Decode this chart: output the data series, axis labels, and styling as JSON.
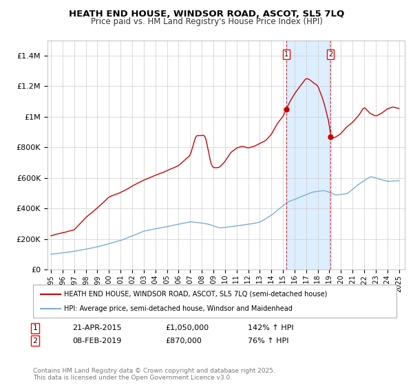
{
  "title_line1": "HEATH END HOUSE, WINDSOR ROAD, ASCOT, SL5 7LQ",
  "title_line2": "Price paid vs. HM Land Registry's House Price Index (HPI)",
  "ylim": [
    0,
    1500000
  ],
  "yticks": [
    0,
    200000,
    400000,
    600000,
    800000,
    1000000,
    1200000,
    1400000
  ],
  "ytick_labels": [
    "£0",
    "£200K",
    "£400K",
    "£600K",
    "£800K",
    "£1M",
    "£1.2M",
    "£1.4M"
  ],
  "sale1_date": "21-APR-2015",
  "sale1_price": 1050000,
  "sale1_x": 2015.3,
  "sale1_pct": "142%",
  "sale2_date": "08-FEB-2019",
  "sale2_price": 870000,
  "sale2_x": 2019.1,
  "sale2_pct": "76%",
  "legend_label1": "HEATH END HOUSE, WINDSOR ROAD, ASCOT, SL5 7LQ (semi-detached house)",
  "legend_label2": "HPI: Average price, semi-detached house, Windsor and Maidenhead",
  "footer": "Contains HM Land Registry data © Crown copyright and database right 2025.\nThis data is licensed under the Open Government Licence v3.0.",
  "line_color_red": "#cc0000",
  "line_color_blue": "#7aadd4",
  "shade_color": "#ddeeff",
  "background_color": "#ffffff",
  "plot_bg_color": "#ffffff",
  "grid_color": "#cccccc",
  "xmin": 1995,
  "xmax": 2025
}
